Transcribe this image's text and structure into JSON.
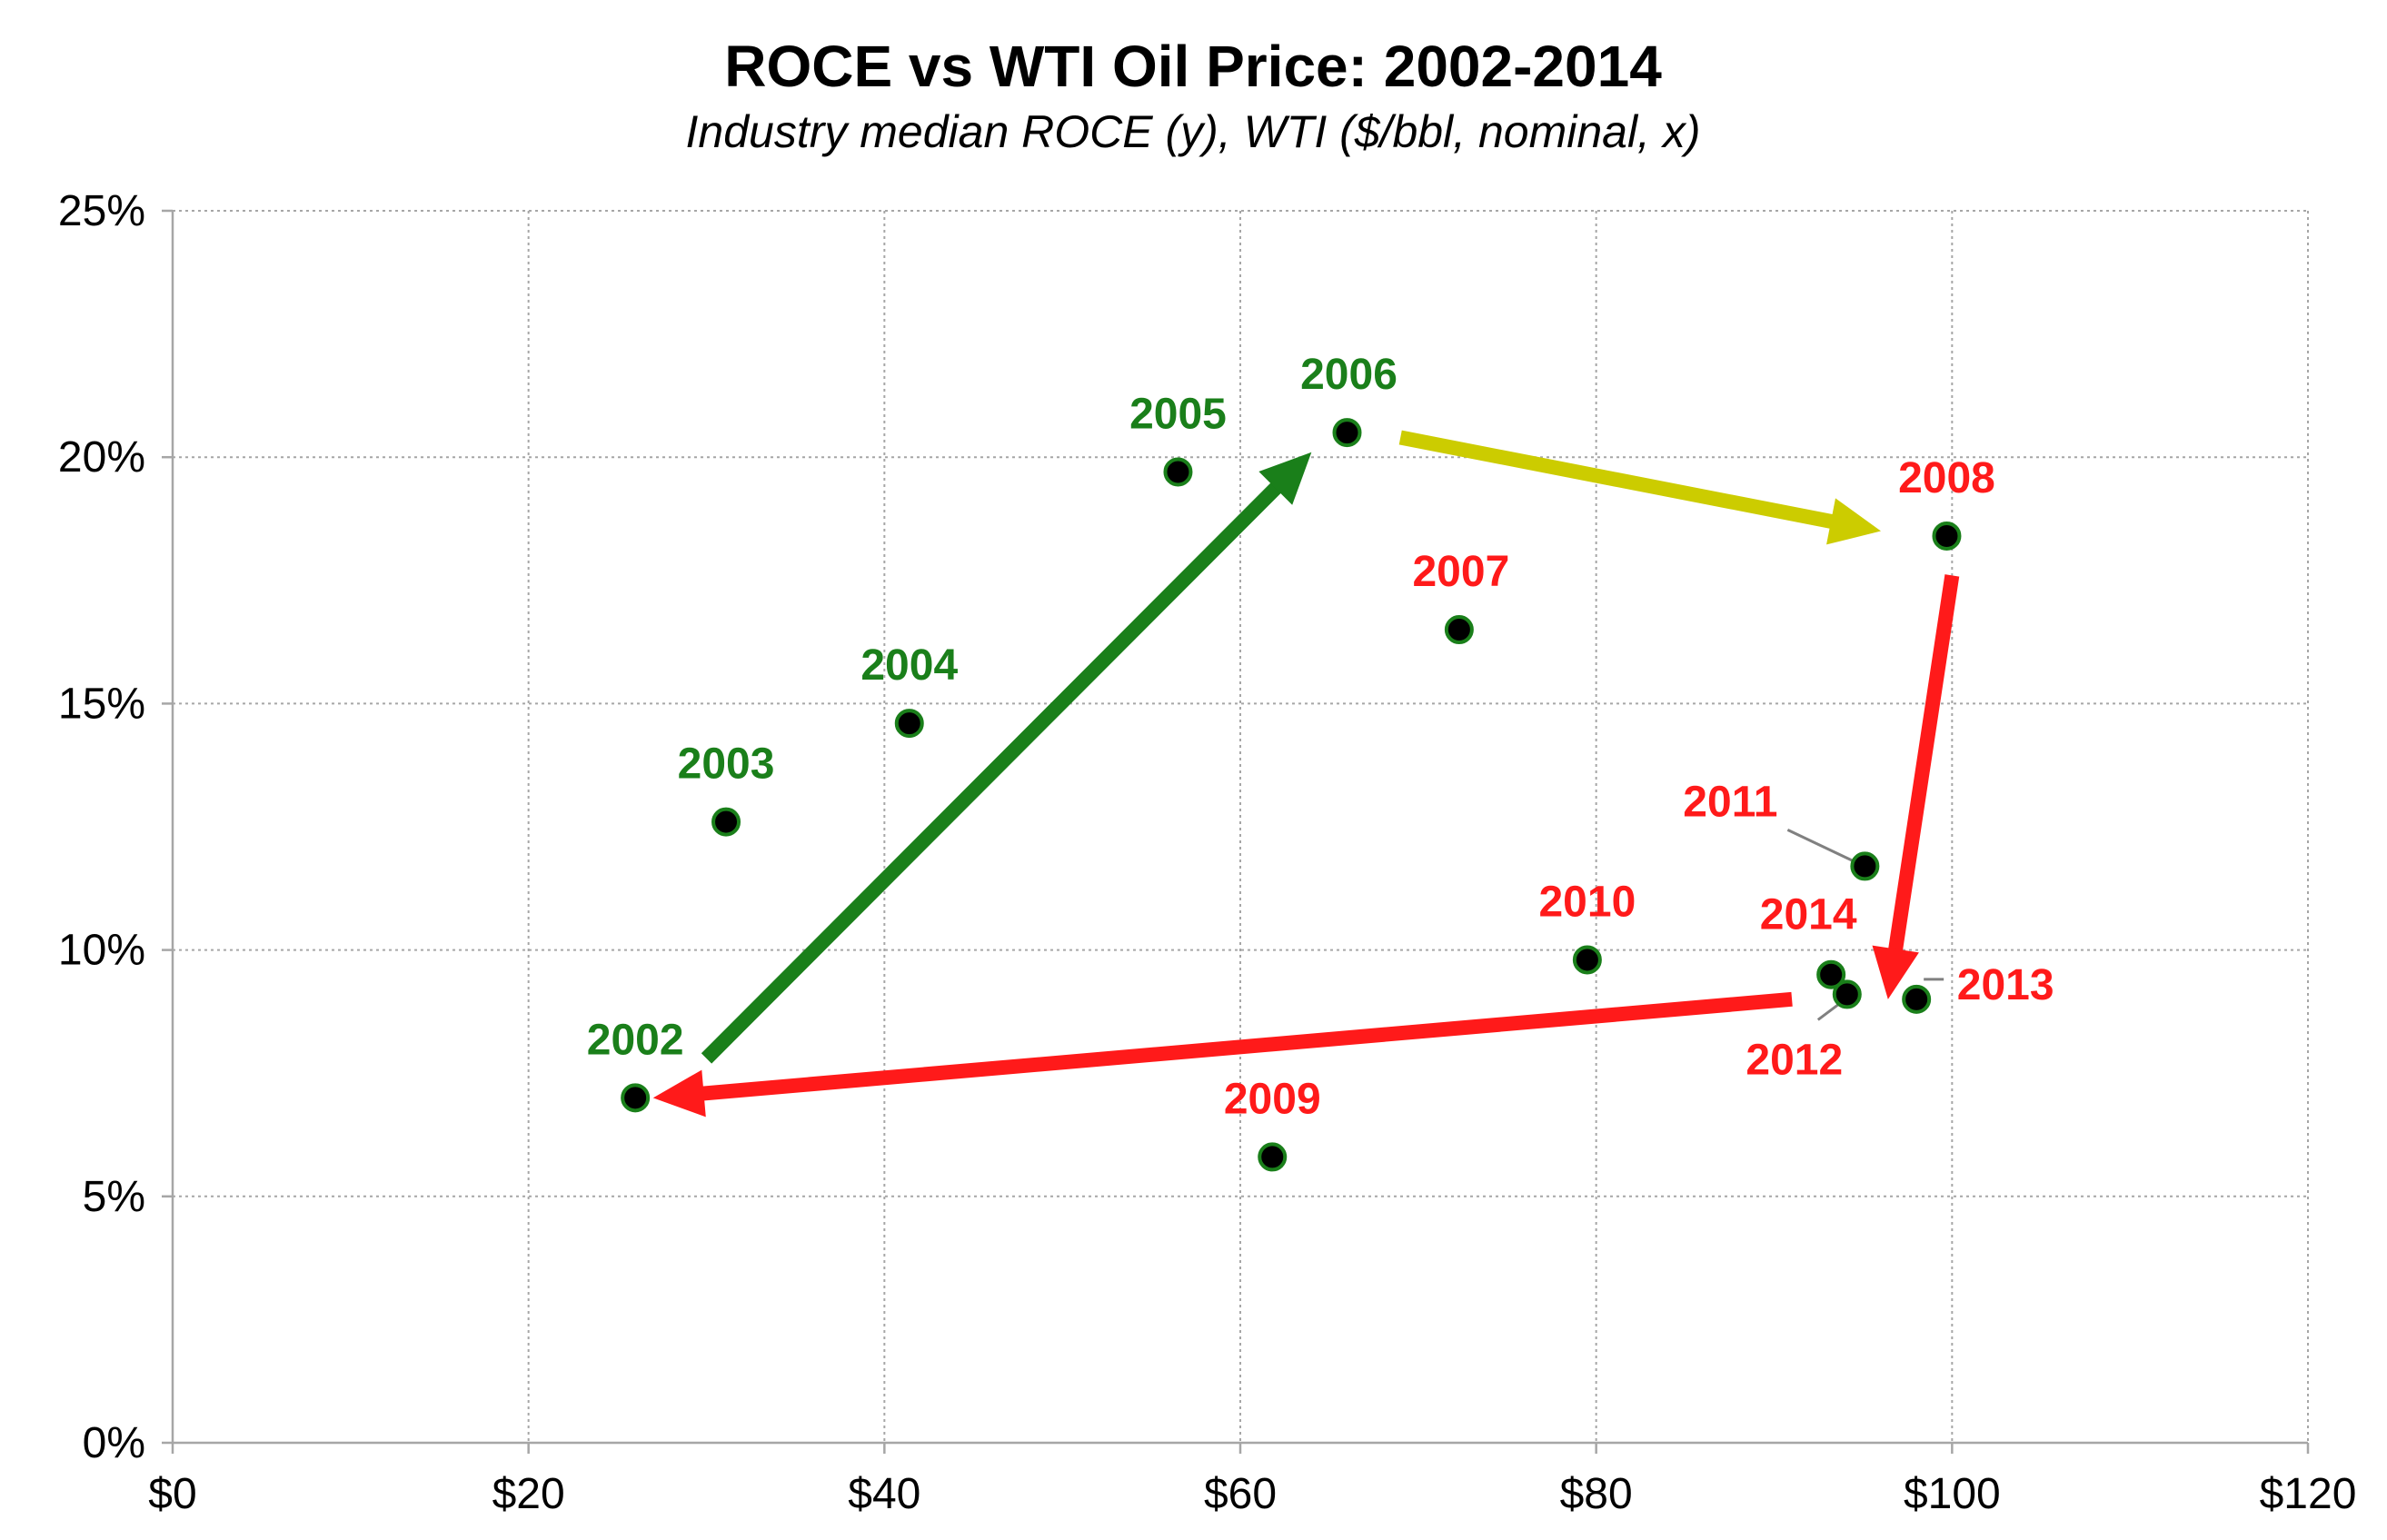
{
  "chart_data": {
    "type": "scatter",
    "title": "ROCE vs WTI Oil Price: 2002-2014",
    "subtitle": "Industry median ROCE (y), WTI ($/bbl, nominal, x)",
    "xlabel": "",
    "ylabel": "",
    "xlim": [
      0,
      120
    ],
    "ylim": [
      0,
      25
    ],
    "x_ticks": [
      0,
      20,
      40,
      60,
      80,
      100,
      120
    ],
    "x_tick_labels": [
      "$0",
      "$20",
      "$40",
      "$60",
      "$80",
      "$100",
      "$120"
    ],
    "y_ticks": [
      0,
      5,
      10,
      15,
      20,
      25
    ],
    "y_tick_labels": [
      "0%",
      "5%",
      "10%",
      "15%",
      "20%",
      "25%"
    ],
    "grid": true,
    "colors": {
      "green": "#1a7f1a",
      "red": "#ff1a1a",
      "yellow": "#cccc00",
      "marker_fill": "#000000",
      "marker_edge": "#1a7f1a",
      "leader": "#808080"
    },
    "points": [
      {
        "label": "2002",
        "x": 26.0,
        "y": 7.0,
        "color": "green"
      },
      {
        "label": "2003",
        "x": 31.1,
        "y": 12.6,
        "color": "green"
      },
      {
        "label": "2004",
        "x": 41.4,
        "y": 14.6,
        "color": "green"
      },
      {
        "label": "2005",
        "x": 56.5,
        "y": 19.7,
        "color": "green"
      },
      {
        "label": "2006",
        "x": 66.0,
        "y": 20.5,
        "color": "green"
      },
      {
        "label": "2007",
        "x": 72.3,
        "y": 16.5,
        "color": "red"
      },
      {
        "label": "2008",
        "x": 99.7,
        "y": 18.4,
        "color": "red"
      },
      {
        "label": "2009",
        "x": 61.8,
        "y": 5.8,
        "color": "red"
      },
      {
        "label": "2010",
        "x": 79.5,
        "y": 9.8,
        "color": "red"
      },
      {
        "label": "2011",
        "x": 95.1,
        "y": 11.7,
        "color": "red"
      },
      {
        "label": "2012",
        "x": 94.1,
        "y": 9.1,
        "color": "red"
      },
      {
        "label": "2013",
        "x": 98.0,
        "y": 9.0,
        "color": "red"
      },
      {
        "label": "2014",
        "x": 93.2,
        "y": 9.5,
        "color": "red"
      }
    ],
    "arrows": [
      {
        "from": [
          30.0,
          7.8
        ],
        "to": [
          64.0,
          20.1
        ],
        "color": "green"
      },
      {
        "from": [
          69.0,
          20.4
        ],
        "to": [
          96.0,
          18.5
        ],
        "color": "yellow"
      },
      {
        "from": [
          100.0,
          17.6
        ],
        "to": [
          96.4,
          9.0
        ],
        "color": "red"
      },
      {
        "from": [
          91.0,
          9.0
        ],
        "to": [
          27.0,
          7.0
        ],
        "color": "red"
      }
    ]
  }
}
